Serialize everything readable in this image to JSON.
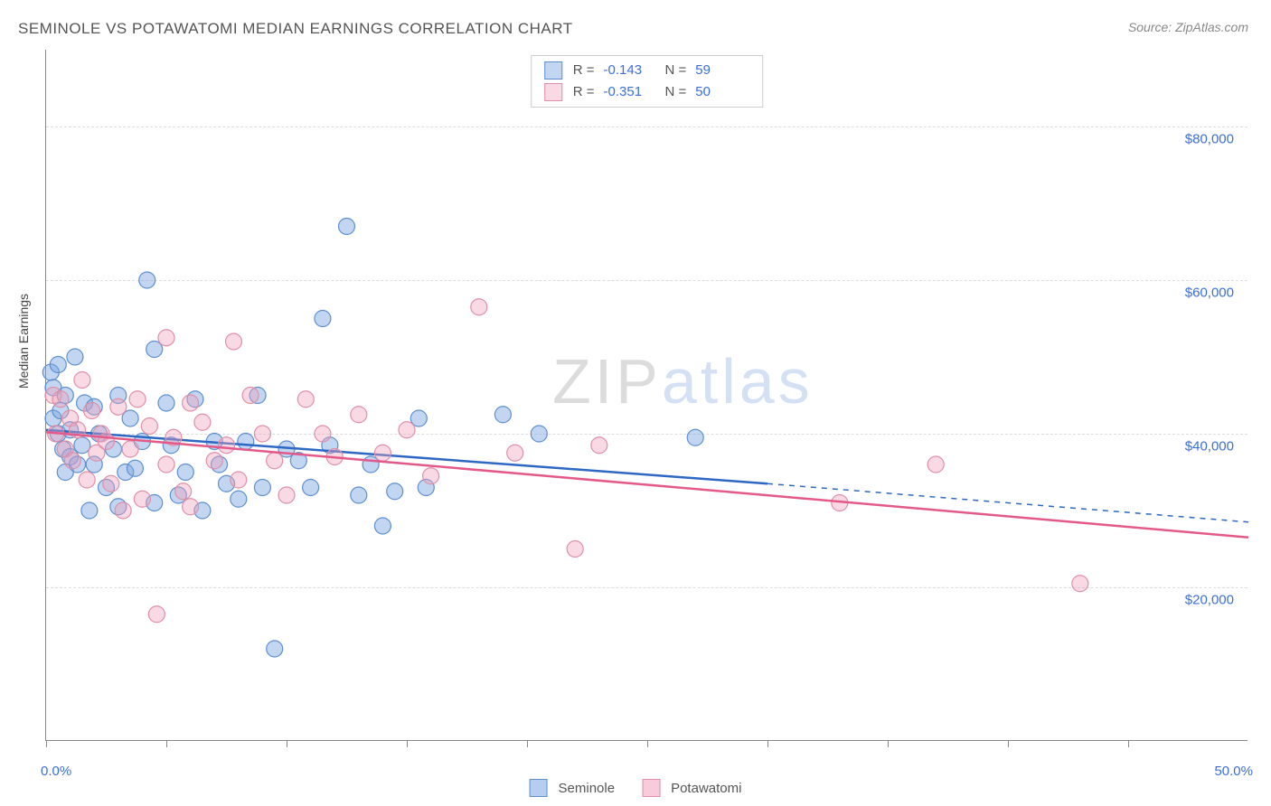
{
  "title": "SEMINOLE VS POTAWATOMI MEDIAN EARNINGS CORRELATION CHART",
  "source": "Source: ZipAtlas.com",
  "ylabel": "Median Earnings",
  "watermark": {
    "part1": "ZIP",
    "part2": "atlas"
  },
  "chart": {
    "type": "scatter",
    "background_color": "#ffffff",
    "grid_color": "#dddddd",
    "axis_color": "#888888",
    "label_color": "#3a6fd8",
    "xlim": [
      0,
      50
    ],
    "ylim": [
      0,
      90000
    ],
    "y_gridlines": [
      20000,
      40000,
      60000,
      80000
    ],
    "y_tick_labels": [
      "$20,000",
      "$40,000",
      "$60,000",
      "$80,000"
    ],
    "x_ticks": [
      0,
      5,
      10,
      15,
      20,
      25,
      30,
      35,
      40,
      45
    ],
    "x_label_min": "0.0%",
    "x_label_max": "50.0%",
    "marker_radius": 9,
    "marker_stroke_width": 1.2,
    "line_width": 2.5,
    "series": [
      {
        "name": "Seminole",
        "color_fill": "rgba(120,165,225,0.45)",
        "color_stroke": "#5e8fd0",
        "line_color": "#2d68c4",
        "R": "-0.143",
        "N": "59",
        "trend": {
          "x1": 0,
          "y1": 40500,
          "x2_solid": 30,
          "y2_solid": 33500,
          "x2": 50,
          "y2": 28500
        },
        "points": [
          [
            0.2,
            48000
          ],
          [
            0.3,
            46000
          ],
          [
            0.3,
            42000
          ],
          [
            0.5,
            49000
          ],
          [
            0.5,
            40000
          ],
          [
            0.6,
            43000
          ],
          [
            0.7,
            38000
          ],
          [
            0.8,
            45000
          ],
          [
            0.8,
            35000
          ],
          [
            1.0,
            40500
          ],
          [
            1.0,
            37000
          ],
          [
            1.2,
            50000
          ],
          [
            1.3,
            36000
          ],
          [
            1.5,
            38500
          ],
          [
            1.6,
            44000
          ],
          [
            1.8,
            30000
          ],
          [
            2.0,
            43500
          ],
          [
            2.0,
            36000
          ],
          [
            2.2,
            40000
          ],
          [
            2.5,
            33000
          ],
          [
            2.8,
            38000
          ],
          [
            3.0,
            45000
          ],
          [
            3.0,
            30500
          ],
          [
            3.3,
            35000
          ],
          [
            3.5,
            42000
          ],
          [
            3.7,
            35500
          ],
          [
            4.0,
            39000
          ],
          [
            4.2,
            60000
          ],
          [
            4.5,
            51000
          ],
          [
            4.5,
            31000
          ],
          [
            5.0,
            44000
          ],
          [
            5.2,
            38500
          ],
          [
            5.5,
            32000
          ],
          [
            5.8,
            35000
          ],
          [
            6.2,
            44500
          ],
          [
            6.5,
            30000
          ],
          [
            7.0,
            39000
          ],
          [
            7.2,
            36000
          ],
          [
            7.5,
            33500
          ],
          [
            8.0,
            31500
          ],
          [
            8.3,
            39000
          ],
          [
            8.8,
            45000
          ],
          [
            9.0,
            33000
          ],
          [
            9.5,
            12000
          ],
          [
            10.0,
            38000
          ],
          [
            10.5,
            36500
          ],
          [
            11.0,
            33000
          ],
          [
            11.5,
            55000
          ],
          [
            11.8,
            38500
          ],
          [
            12.5,
            67000
          ],
          [
            13.0,
            32000
          ],
          [
            13.5,
            36000
          ],
          [
            14.0,
            28000
          ],
          [
            14.5,
            32500
          ],
          [
            15.5,
            42000
          ],
          [
            15.8,
            33000
          ],
          [
            19.0,
            42500
          ],
          [
            20.5,
            40000
          ],
          [
            27.0,
            39500
          ]
        ]
      },
      {
        "name": "Potawatomi",
        "color_fill": "rgba(240,160,185,0.40)",
        "color_stroke": "#e08fa8",
        "line_color": "#e35a8a",
        "R": "-0.351",
        "N": "50",
        "trend": {
          "x1": 0,
          "y1": 40200,
          "x2_solid": 50,
          "y2_solid": 26500,
          "x2": 50,
          "y2": 26500
        },
        "points": [
          [
            0.3,
            45000
          ],
          [
            0.4,
            40000
          ],
          [
            0.6,
            44500
          ],
          [
            0.8,
            38000
          ],
          [
            1.0,
            42000
          ],
          [
            1.1,
            36500
          ],
          [
            1.3,
            40500
          ],
          [
            1.5,
            47000
          ],
          [
            1.7,
            34000
          ],
          [
            1.9,
            43000
          ],
          [
            2.1,
            37500
          ],
          [
            2.3,
            40000
          ],
          [
            2.5,
            39000
          ],
          [
            2.7,
            33500
          ],
          [
            3.0,
            43500
          ],
          [
            3.2,
            30000
          ],
          [
            3.5,
            38000
          ],
          [
            3.8,
            44500
          ],
          [
            4.0,
            31500
          ],
          [
            4.3,
            41000
          ],
          [
            4.6,
            16500
          ],
          [
            5.0,
            52500
          ],
          [
            5.0,
            36000
          ],
          [
            5.3,
            39500
          ],
          [
            5.7,
            32500
          ],
          [
            6.0,
            44000
          ],
          [
            6.0,
            30500
          ],
          [
            6.5,
            41500
          ],
          [
            7.0,
            36500
          ],
          [
            7.5,
            38500
          ],
          [
            7.8,
            52000
          ],
          [
            8.0,
            34000
          ],
          [
            8.5,
            45000
          ],
          [
            9.0,
            40000
          ],
          [
            9.5,
            36500
          ],
          [
            10.0,
            32000
          ],
          [
            10.8,
            44500
          ],
          [
            11.5,
            40000
          ],
          [
            12.0,
            37000
          ],
          [
            13.0,
            42500
          ],
          [
            14.0,
            37500
          ],
          [
            15.0,
            40500
          ],
          [
            16.0,
            34500
          ],
          [
            18.0,
            56500
          ],
          [
            19.5,
            37500
          ],
          [
            22.0,
            25000
          ],
          [
            23.0,
            38500
          ],
          [
            33.0,
            31000
          ],
          [
            37.0,
            36000
          ],
          [
            43.0,
            20500
          ]
        ]
      }
    ]
  },
  "legend_bottom": [
    {
      "label": "Seminole",
      "fill": "rgba(120,165,225,0.55)",
      "stroke": "#5e8fd0"
    },
    {
      "label": "Potawatomi",
      "fill": "rgba(240,160,185,0.55)",
      "stroke": "#e08fa8"
    }
  ]
}
